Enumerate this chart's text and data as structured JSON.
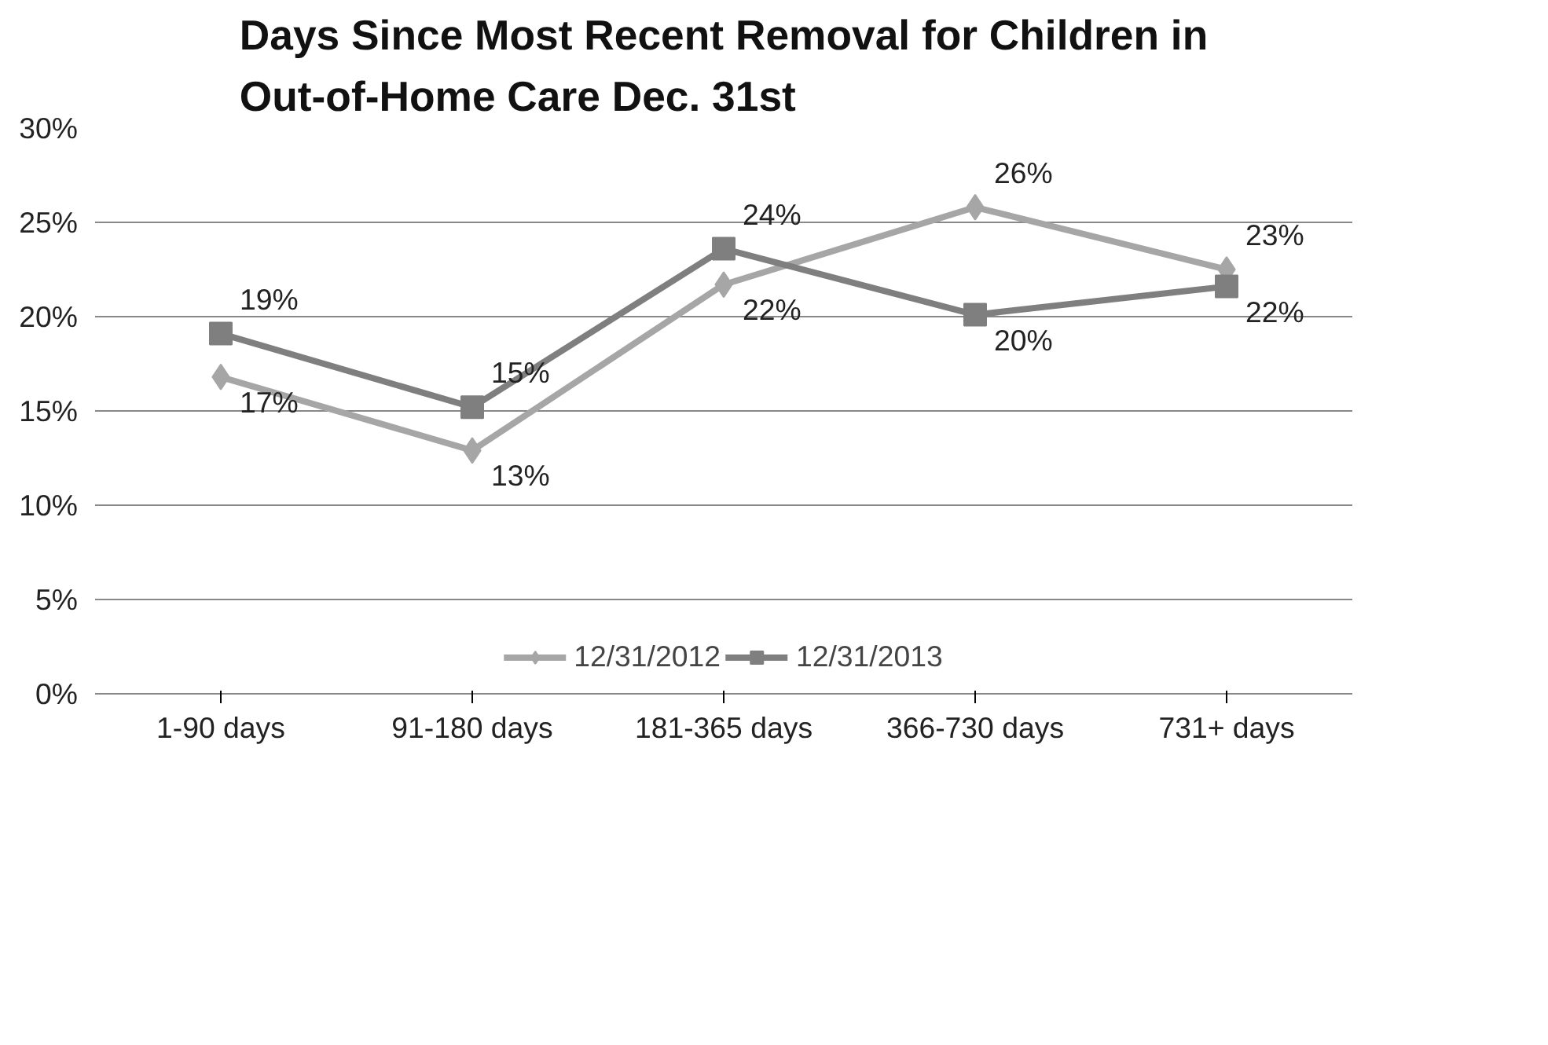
{
  "chart_data": {
    "type": "line",
    "title": "Days Since Most Recent Removal for Children in Out-of-Home Care Dec. 31st",
    "categories": [
      "1-90 days",
      "91-180 days",
      "181-365 days",
      "366-730 days",
      "731+ days"
    ],
    "series": [
      {
        "name": "12/31/2012",
        "color": "#a6a6a6",
        "marker": "diamond",
        "values": [
          16.8,
          12.9,
          21.7,
          25.8,
          22.5
        ],
        "value_labels": [
          "17%",
          "13%",
          "22%",
          "26%",
          "23%"
        ]
      },
      {
        "name": "12/31/2013",
        "color": "#7f7f7f",
        "marker": "square",
        "values": [
          19.1,
          15.2,
          23.6,
          20.1,
          21.6
        ],
        "value_labels": [
          "19%",
          "15%",
          "24%",
          "20%",
          "22%"
        ]
      }
    ],
    "ylim": [
      0,
      30
    ],
    "yticks": [
      {
        "value": 0,
        "label": "0%"
      },
      {
        "value": 5,
        "label": "5%"
      },
      {
        "value": 10,
        "label": "10%"
      },
      {
        "value": 15,
        "label": "15%"
      },
      {
        "value": 20,
        "label": "20%"
      },
      {
        "value": 25,
        "label": "25%"
      },
      {
        "value": 30,
        "label": "30%"
      }
    ],
    "grid": "y",
    "legend": "bottom",
    "line_style": "solid"
  }
}
